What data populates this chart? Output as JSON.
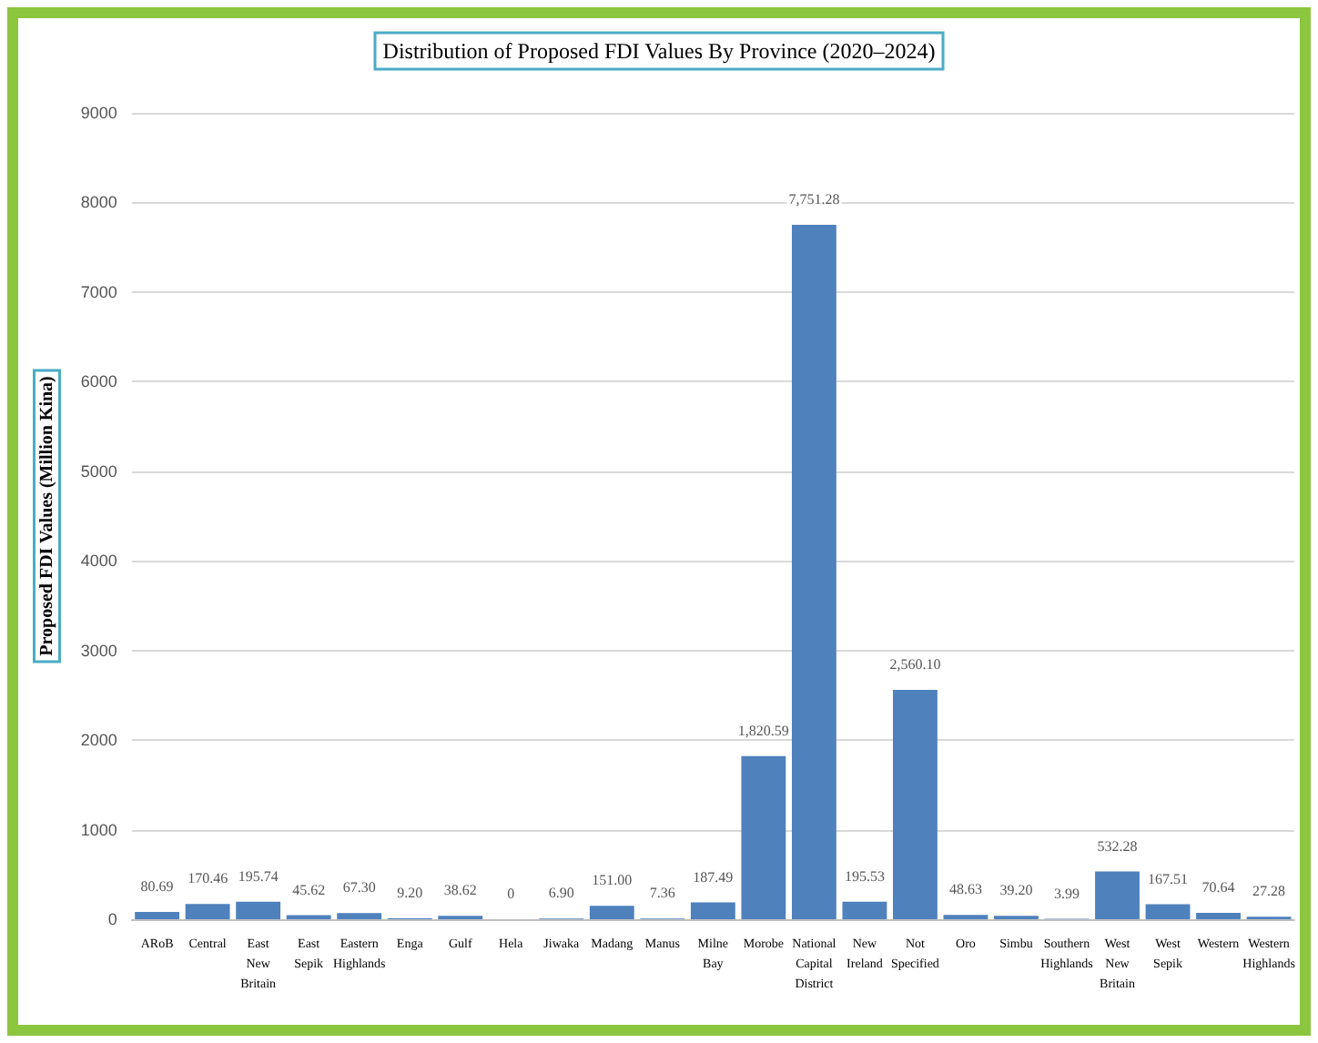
{
  "chart_data": {
    "type": "bar",
    "title": "Distribution of Proposed FDI Values By Province (2020–2024)",
    "ylabel": "Proposed FDI Values (Million Kina)",
    "categories": [
      "ARoB",
      "Central",
      "East New Britain",
      "East Sepik",
      "Eastern Highlands",
      "Enga",
      "Gulf",
      "Hela",
      "Jiwaka",
      "Madang",
      "Manus",
      "Milne Bay",
      "Morobe",
      "National Capital District",
      "New Ireland",
      "Not Specified",
      "Oro",
      "Simbu",
      "Southern Highlands",
      "West New Britain",
      "West Sepik",
      "Western",
      "Western Highlands"
    ],
    "values": [
      80.69,
      170.46,
      195.74,
      45.62,
      67.3,
      9.2,
      38.62,
      0,
      6.9,
      151.0,
      7.36,
      187.49,
      1820.59,
      7751.28,
      195.53,
      2560.1,
      48.63,
      39.2,
      3.99,
      532.28,
      167.51,
      70.64,
      27.28
    ],
    "value_labels": [
      "80.69",
      "170.46",
      "195.74",
      "45.62",
      "67.30",
      "9.20",
      "38.62",
      "0",
      "6.90",
      "151.00",
      "7.36",
      "187.49",
      "1,820.59",
      "7,751.28",
      "195.53",
      "2,560.10",
      "48.63",
      "39.20",
      "3.99",
      "532.28",
      "167.51",
      "70.64",
      "27.28"
    ],
    "color": "#4f81bd",
    "ylim": [
      0,
      9000
    ],
    "yticks": [
      0,
      1000,
      2000,
      3000,
      4000,
      5000,
      6000,
      7000,
      8000,
      9000
    ],
    "grid": "y"
  }
}
